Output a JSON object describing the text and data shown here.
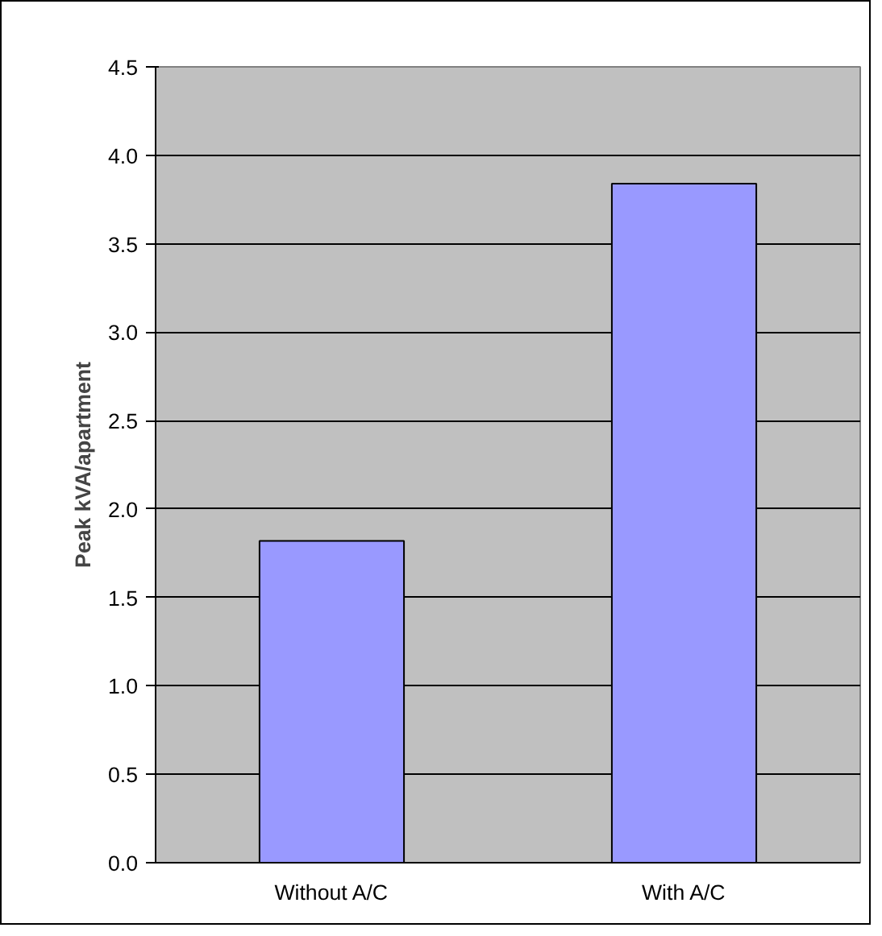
{
  "chart_data": {
    "type": "bar",
    "categories": [
      "Without A/C",
      "With A/C"
    ],
    "values": [
      1.82,
      3.84
    ],
    "color": "#9999ff",
    "ylabel": "Peak kVA/apartment",
    "ylim": [
      0,
      4.5
    ],
    "yticks": [
      {
        "value": 0,
        "label": "0.0"
      },
      {
        "value": 0.5,
        "label": "0.5"
      },
      {
        "value": 1,
        "label": "1.0"
      },
      {
        "value": 1.5,
        "label": "1.5"
      },
      {
        "value": 2,
        "label": "2.0"
      },
      {
        "value": 2.5,
        "label": "2.5"
      },
      {
        "value": 3,
        "label": "3.0"
      },
      {
        "value": 3.5,
        "label": "3.5"
      },
      {
        "value": 4,
        "label": "4.0"
      },
      {
        "value": 4.5,
        "label": "4.5"
      }
    ],
    "grid": "y"
  }
}
